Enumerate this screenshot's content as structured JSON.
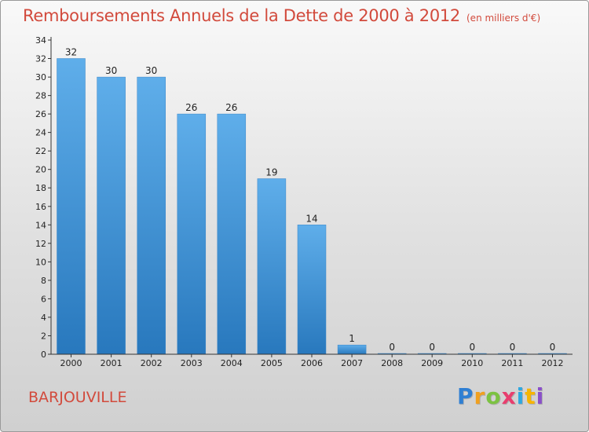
{
  "title": "Remboursements Annuels de la Dette de 2000 à 2012",
  "subtitle": "(en milliers d'€)",
  "commune": "BARJOUVILLE",
  "brand": {
    "letters": [
      "P",
      "r",
      "o",
      "x",
      "i",
      "t",
      "i"
    ],
    "colors": [
      "#2f7fd3",
      "#f0a020",
      "#7cc242",
      "#e83e6e",
      "#2fa8e0",
      "#f7b500",
      "#8a4fc9"
    ]
  },
  "colors": {
    "title": "#d24a3c",
    "bar_light": "#5faeea",
    "bar_dark": "#2878bd",
    "axis": "#333333"
  },
  "chart_data": {
    "type": "bar",
    "categories": [
      "2000",
      "2001",
      "2002",
      "2003",
      "2004",
      "2005",
      "2006",
      "2007",
      "2008",
      "2009",
      "2010",
      "2011",
      "2012"
    ],
    "values": [
      32,
      30,
      30,
      26,
      26,
      19,
      14,
      1,
      0,
      0,
      0,
      0,
      0
    ],
    "data_labels": [
      "32",
      "30",
      "30",
      "26",
      "26",
      "19",
      "14",
      "1",
      "0",
      "0",
      "0",
      "0",
      "0"
    ],
    "y_ticks": [
      0,
      2,
      4,
      6,
      8,
      10,
      12,
      14,
      16,
      18,
      20,
      22,
      24,
      26,
      28,
      30,
      32,
      34
    ],
    "ylim": [
      0,
      34
    ],
    "grid": false,
    "legend": "none"
  }
}
